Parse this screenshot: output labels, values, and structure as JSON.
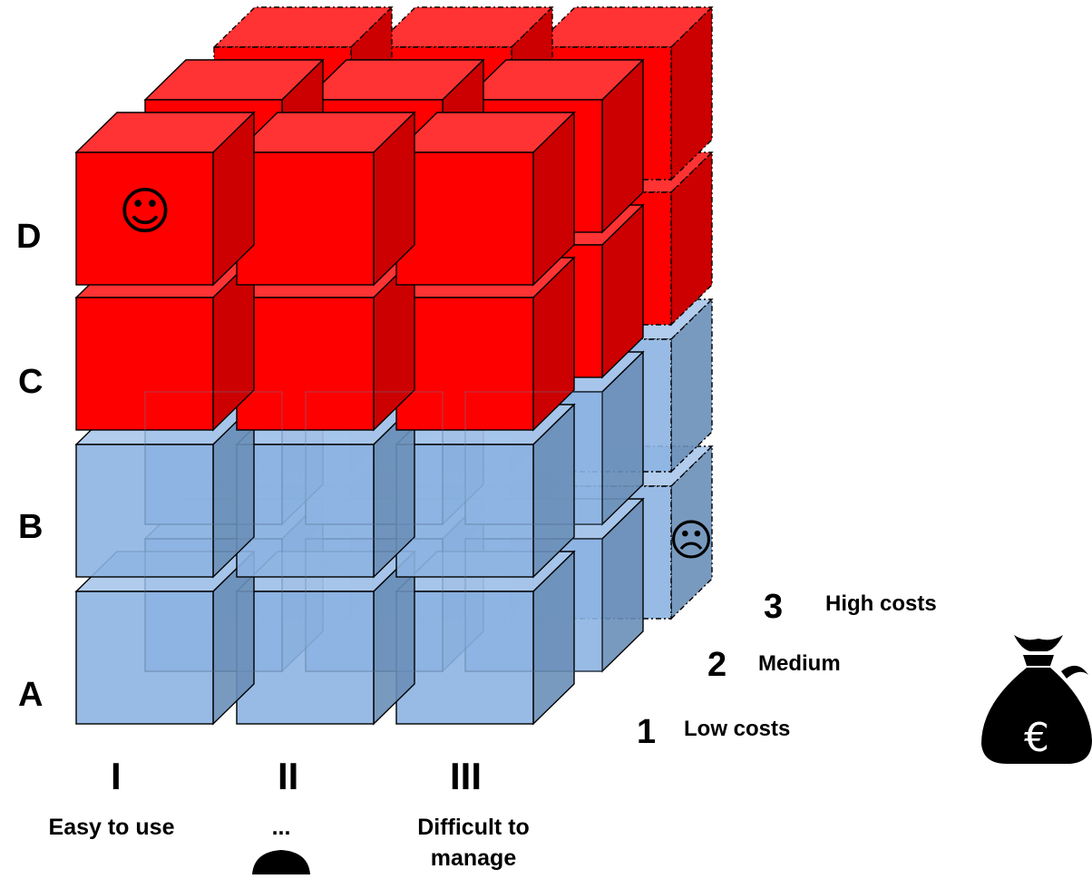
{
  "rows": [
    "A",
    "B",
    "C",
    "D"
  ],
  "columns": [
    {
      "numeral": "I",
      "label": "Easy to use"
    },
    {
      "numeral": "II",
      "label": "..."
    },
    {
      "numeral": "III",
      "label": "Difficult to manage"
    }
  ],
  "depth": [
    {
      "number": "1",
      "label": "Low costs"
    },
    {
      "number": "2",
      "label": "Medium"
    },
    {
      "number": "3",
      "label": "High costs"
    }
  ],
  "markers": {
    "best": {
      "glyph": "☺"
    },
    "worst": {
      "glyph": "☹"
    }
  },
  "icons": {
    "cost": {
      "name": "money-bag-icon",
      "symbol": "€"
    }
  },
  "colors": {
    "red_front": "#ff0000",
    "red_top": "#ff3333",
    "red_side": "#cc0000",
    "blue_front": "#8db4e2",
    "blue_top": "#a8c6ea",
    "blue_side": "#6a8fb8"
  }
}
